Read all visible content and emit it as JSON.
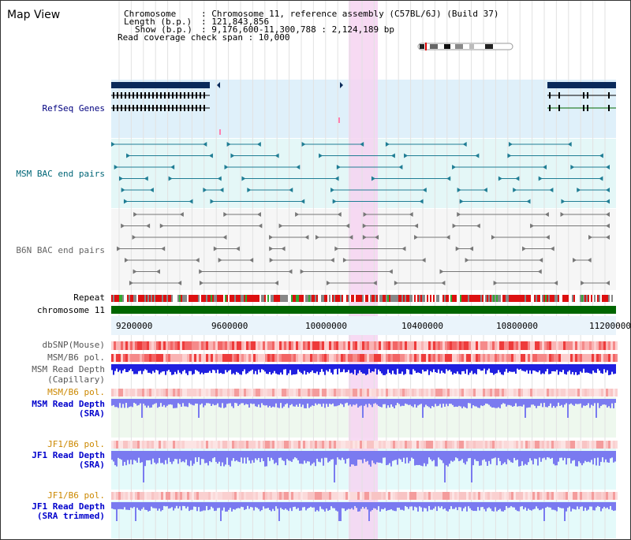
{
  "title": "Map View",
  "info": {
    "chromosome_key": "Chromosome",
    "chromosome_val": ": Chromosome 11, reference assembly (C57BL/6J) (Build 37)",
    "length_key": "Length (b.p.)",
    "length_val": ": 121,843,856",
    "show_key": "Show (b.p.)",
    "show_val": ": 9,176,600-11,300,788 : 2,124,189 bp",
    "coverage": "Read coverage check span : 10,000"
  },
  "tracks": {
    "refseq": "RefSeq Genes",
    "msm_bac": "MSM BAC end pairs",
    "b6n_bac": "B6N BAC end pairs",
    "repeat": "Repeat",
    "chromosome": "chromosome 11",
    "dbsnp": "dbSNP(Mouse)",
    "msm_b6_pol_1": "MSM/B6 pol.",
    "msm_read_depth_cap_1": "MSM Read Depth",
    "msm_read_depth_cap_2": "(Capillary)",
    "msm_b6_pol_2": "MSM/B6 pol.",
    "msm_read_depth_sra_1": "MSM Read Depth",
    "msm_read_depth_sra_2": "(SRA)",
    "jf1_b6_pol_1": "JF1/B6 pol.",
    "jf1_read_depth_sra_1": "JF1 Read Depth",
    "jf1_read_depth_sra_2": "(SRA)",
    "jf1_b6_pol_2": "JF1/B6 pol.",
    "jf1_read_depth_trim_1": "JF1 Read Depth",
    "jf1_read_depth_trim_2": "(SRA trimmed)"
  },
  "axis_ticks": [
    "9200000",
    "9600000",
    "10000000",
    "10400000",
    "10800000",
    "11200000"
  ],
  "colors": {
    "refseq_bg": "#dff0fa",
    "msm_bac_bg": "#e4f7f7",
    "b6n_bac_bg": "#f4f4f4",
    "highlight": "#f6d3f1",
    "chromosome_bar": "#006600",
    "depth_blue": "#2020e0",
    "depth_light_blue": "#7a7af0",
    "pol_red": "#ee2222",
    "label_navy": "#00007f",
    "label_teal": "#006677",
    "label_gray": "#666666",
    "label_orange": "#cc8800",
    "label_blue": "#0000cc"
  }
}
